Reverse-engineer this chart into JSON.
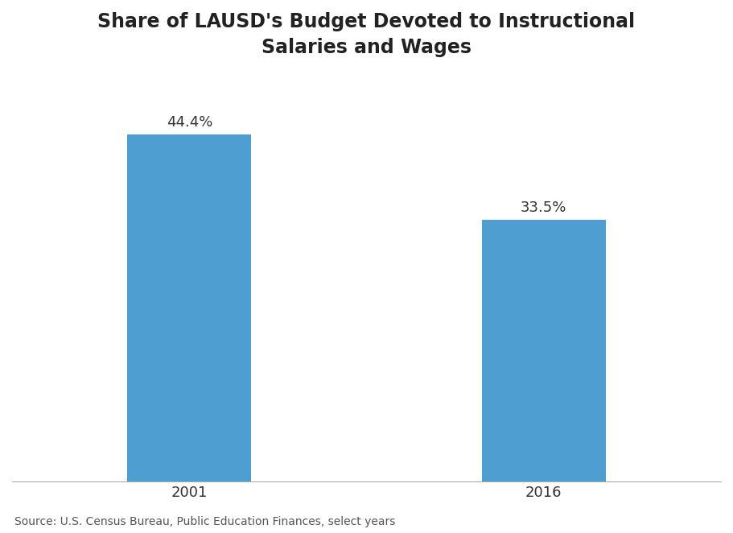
{
  "categories": [
    "2001",
    "2016"
  ],
  "values": [
    44.4,
    33.5
  ],
  "labels": [
    "44.4%",
    "33.5%"
  ],
  "bar_color": "#4F9ED1",
  "title_line1": "Share of LAUSD's Budget Devoted to Instructional",
  "title_line2": "Salaries and Wages",
  "source_text": "Source: U.S. Census Bureau, Public Education Finances, select years",
  "ylim": [
    0,
    52
  ],
  "title_fontsize": 17,
  "label_fontsize": 13,
  "tick_fontsize": 13,
  "source_fontsize": 10,
  "bar_width": 0.35,
  "x_positions": [
    1,
    2
  ],
  "xlim": [
    0.5,
    2.5
  ],
  "background_color": "#ffffff"
}
